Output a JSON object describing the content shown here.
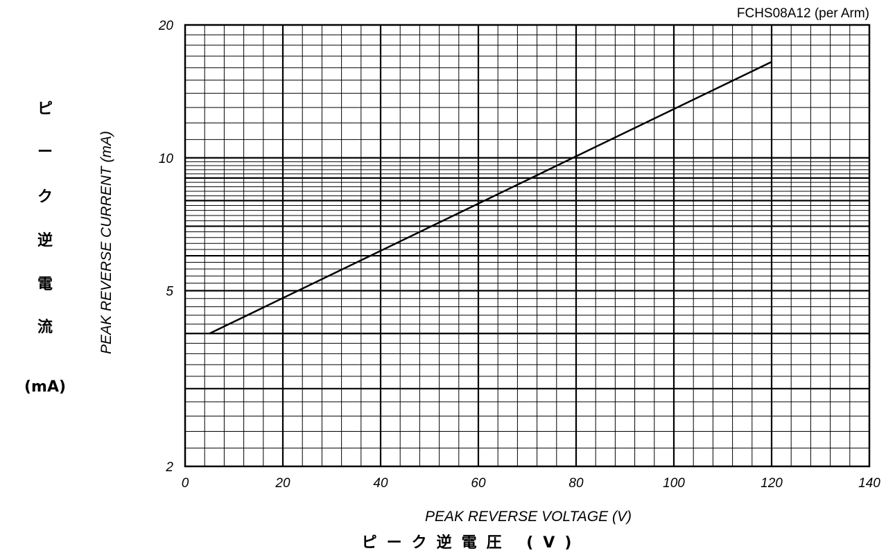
{
  "chart_data": {
    "type": "line",
    "title": "FCHS08A12 (per Arm)",
    "xlabel": "PEAK REVERSE VOLTAGE (V)",
    "xlabel_jp": "ピーク逆電圧 (V)",
    "ylabel": "PEAK REVERSE CURRENT (mA)",
    "ylabel_jp": [
      "ピ",
      "ー",
      "ク",
      "逆",
      "電",
      "流",
      "(mA)"
    ],
    "x_ticks": [
      "0",
      "20",
      "40",
      "60",
      "80",
      "100",
      "120",
      "140"
    ],
    "y_ticks": [
      "2",
      "5",
      "10",
      "20"
    ],
    "y_scale": "log",
    "xlim": [
      0,
      140
    ],
    "ylim": [
      2,
      20
    ],
    "grid": true,
    "series": [
      {
        "x": [
          5,
          120
        ],
        "y": [
          4.0,
          16.5
        ]
      }
    ]
  }
}
